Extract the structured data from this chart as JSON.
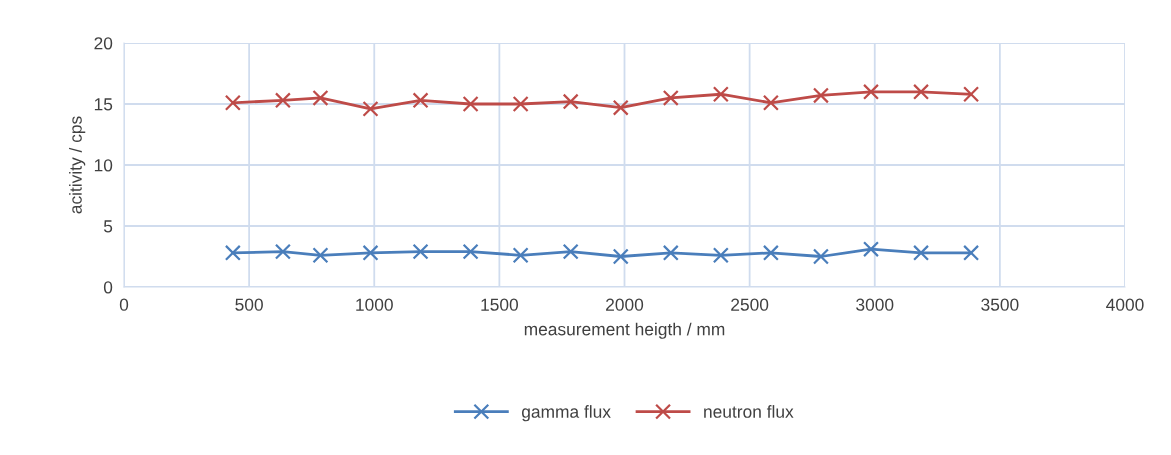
{
  "chart_data": {
    "type": "line",
    "xlabel": "measurement heigth / mm",
    "ylabel": "acitivity / cps",
    "x": [
      435,
      635,
      785,
      985,
      1185,
      1385,
      1585,
      1785,
      1985,
      2185,
      2385,
      2585,
      2785,
      2985,
      3185,
      3385
    ],
    "series": [
      {
        "name": "gamma flux",
        "color": "#4a7ebb",
        "values": [
          2.8,
          2.9,
          2.6,
          2.8,
          2.9,
          2.9,
          2.6,
          2.9,
          2.5,
          2.8,
          2.6,
          2.8,
          2.5,
          3.1,
          2.8,
          2.8
        ]
      },
      {
        "name": "neutron flux",
        "color": "#be4b48",
        "values": [
          15.1,
          15.3,
          15.5,
          14.6,
          15.3,
          15.0,
          15.0,
          15.2,
          14.7,
          15.5,
          15.8,
          15.1,
          15.7,
          16.0,
          16.0,
          15.8
        ]
      }
    ],
    "xlim": [
      0,
      4000
    ],
    "xticks": [
      0,
      500,
      1000,
      1500,
      2000,
      2500,
      3000,
      3500,
      4000
    ],
    "ylim": [
      0,
      20
    ],
    "yticks": [
      0,
      5,
      10,
      15,
      20
    ],
    "grid": true,
    "legend": "bottom",
    "marker": "cross",
    "line_style": "solid"
  }
}
